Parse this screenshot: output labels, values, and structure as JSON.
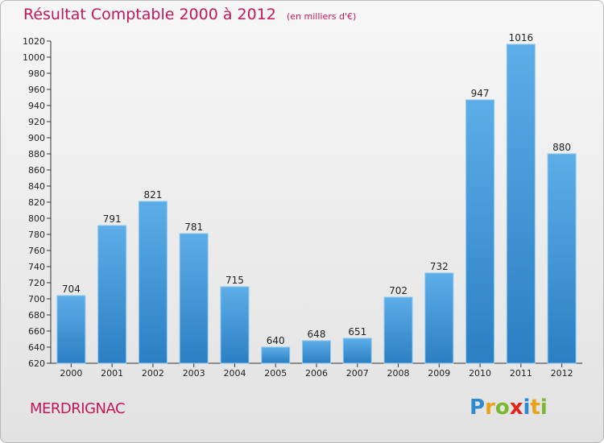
{
  "header": {
    "title": "Résultat Comptable 2000 à 2012",
    "subtitle": "(en milliers d'€)"
  },
  "footer": {
    "commune": "MERDRIGNAC"
  },
  "logo": {
    "text": "Proxiti",
    "letters": [
      {
        "char": "P",
        "color": "#2e8bcf"
      },
      {
        "char": "r",
        "color": "#e8a317"
      },
      {
        "char": "o",
        "color": "#7cb82f"
      },
      {
        "char": "x",
        "color": "#e2231a"
      },
      {
        "char": "i",
        "color": "#2e8bcf"
      },
      {
        "char": "t",
        "color": "#e8a317"
      },
      {
        "char": "i",
        "color": "#7cb82f"
      }
    ]
  },
  "chart_data": {
    "type": "bar",
    "title": "Résultat Comptable 2000 à 2012",
    "subtitle": "(en milliers d'€)",
    "categories": [
      "2000",
      "2001",
      "2002",
      "2003",
      "2004",
      "2005",
      "2006",
      "2007",
      "2008",
      "2009",
      "2010",
      "2011",
      "2012"
    ],
    "values": [
      704,
      791,
      821,
      781,
      715,
      640,
      648,
      651,
      702,
      732,
      947,
      1016,
      880
    ],
    "ylim": [
      620,
      1020
    ],
    "ytick_step": 20,
    "grid": false,
    "legend": "none",
    "bar_color_top": "#5dade8",
    "bar_color_bottom": "#2b7fc2"
  }
}
